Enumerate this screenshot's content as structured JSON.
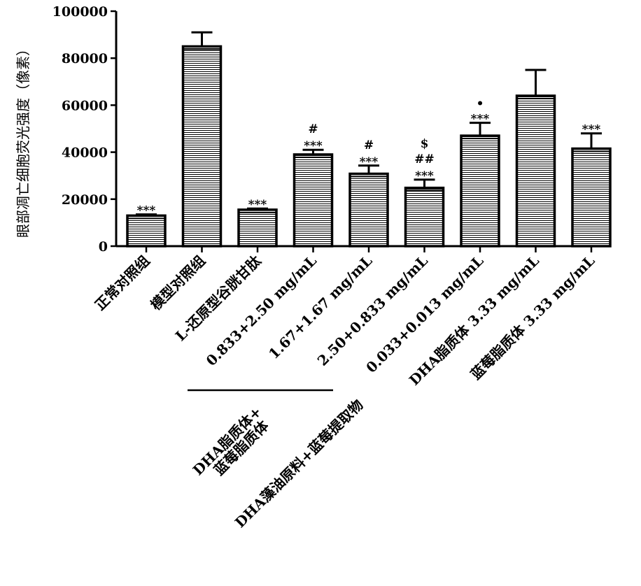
{
  "chart_data": {
    "type": "bar",
    "ylabel": "眼部凋亡细胞荧光强度（像素）",
    "ylim": [
      0,
      100000
    ],
    "yticks": [
      "0",
      "20000",
      "40000",
      "60000",
      "80000",
      "100000"
    ],
    "categories": [
      "正常对照组",
      "模型对照组",
      "L-还原型谷胱甘肽",
      "0.833+2.50 mg/mL",
      "1.67+1.67 mg/mL",
      "2.50+0.833 mg/mL",
      "0.033+0.013 mg/mL",
      "DHA脂质体 3.33 mg/mL",
      "蓝莓脂质体 3.33 mg/mL"
    ],
    "values": [
      13000,
      85000,
      15500,
      39000,
      30800,
      24800,
      47000,
      64000,
      41500
    ],
    "errors": [
      500,
      6000,
      500,
      2000,
      3500,
      3500,
      5500,
      11000,
      6500
    ],
    "annotations": [
      [
        "***"
      ],
      [],
      [
        "***"
      ],
      [
        "#",
        "***"
      ],
      [
        "#",
        "***"
      ],
      [
        "$",
        "##",
        "***"
      ],
      [
        "•",
        "***"
      ],
      [],
      [
        "***"
      ]
    ],
    "group_labels": {
      "group1_line1": "DHA脂质体+",
      "group1_line2": "蓝莓脂质体",
      "group2": "DHA藻油原料+蓝莓提取物"
    },
    "grid": false,
    "legend": "none"
  }
}
